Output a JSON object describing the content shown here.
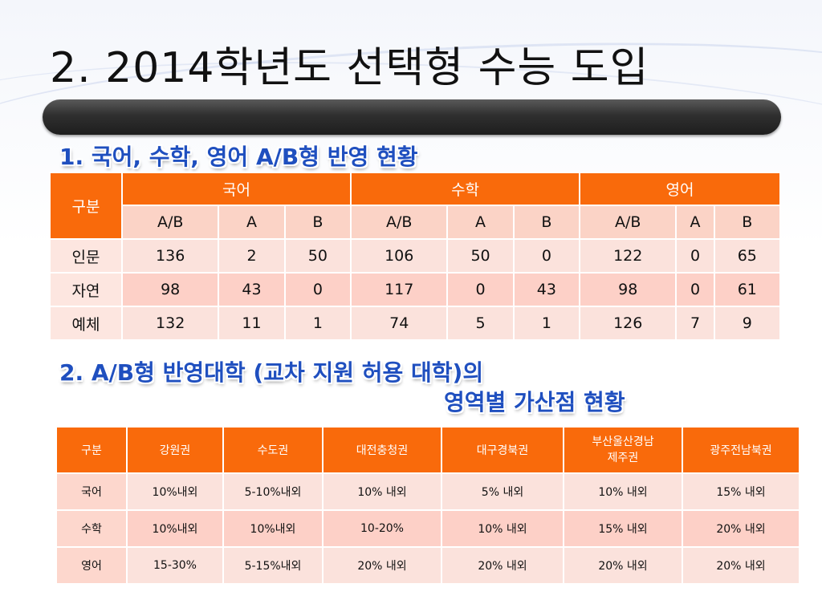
{
  "title": "2. 2014학년도 선택형 수능 도입",
  "section1": {
    "heading": "1. 국어, 수학, 영어 A/B형 반영 현황",
    "corner": "구분",
    "groups": [
      "국어",
      "수학",
      "영어"
    ],
    "subheaders": [
      "A/B",
      "A",
      "B",
      "A/B",
      "A",
      "B",
      "A/B",
      "A",
      "B"
    ],
    "rows": [
      {
        "label": "인문",
        "values": [
          "136",
          "2",
          "50",
          "106",
          "50",
          "0",
          "122",
          "0",
          "65"
        ]
      },
      {
        "label": "자연",
        "values": [
          "98",
          "43",
          "0",
          "117",
          "0",
          "43",
          "98",
          "0",
          "61"
        ]
      },
      {
        "label": "예체",
        "values": [
          "132",
          "11",
          "1",
          "74",
          "5",
          "1",
          "126",
          "7",
          "9"
        ]
      }
    ]
  },
  "section2": {
    "heading_line1": "2. A/B형 반영대학 (교차 지원 허용 대학)의",
    "heading_line2": "영역별 가산점 현황",
    "headers": [
      "구분",
      "강원권",
      "수도권",
      "대전충청권",
      "대구경북권",
      "부산울산경남\n제주권",
      "광주전남북권"
    ],
    "rows": [
      {
        "label": "국어",
        "values": [
          "10%내외",
          "5-10%내외",
          "10% 내외",
          "5% 내외",
          "10% 내외",
          "15% 내외"
        ]
      },
      {
        "label": "수학",
        "values": [
          "10%내외",
          "10%내외",
          "10-20%",
          "10% 내외",
          "15% 내외",
          "20% 내외"
        ]
      },
      {
        "label": "영어",
        "values": [
          "15-30%",
          "5-15%내외",
          "20% 내외",
          "20% 내외",
          "20% 내외",
          "20% 내외"
        ]
      }
    ]
  }
}
